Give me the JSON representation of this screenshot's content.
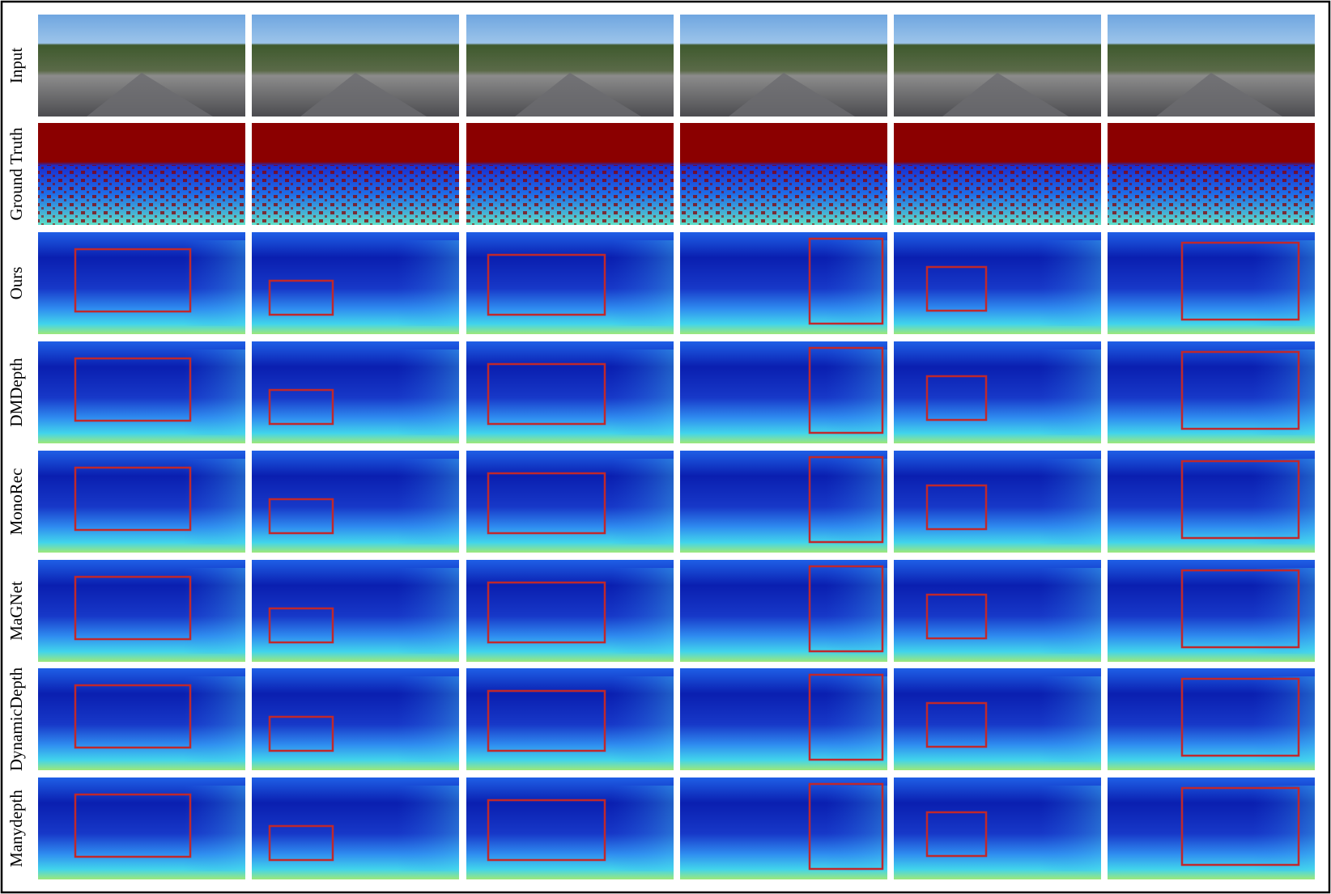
{
  "rows": [
    {
      "label": "Input"
    },
    {
      "label": "Ground Truth"
    },
    {
      "label": "Ours"
    },
    {
      "label": "DMDepth"
    },
    {
      "label": "MonoRec"
    },
    {
      "label": "MaGNet"
    },
    {
      "label": "DynamicDepth"
    },
    {
      "label": "Manydepth"
    }
  ]
}
